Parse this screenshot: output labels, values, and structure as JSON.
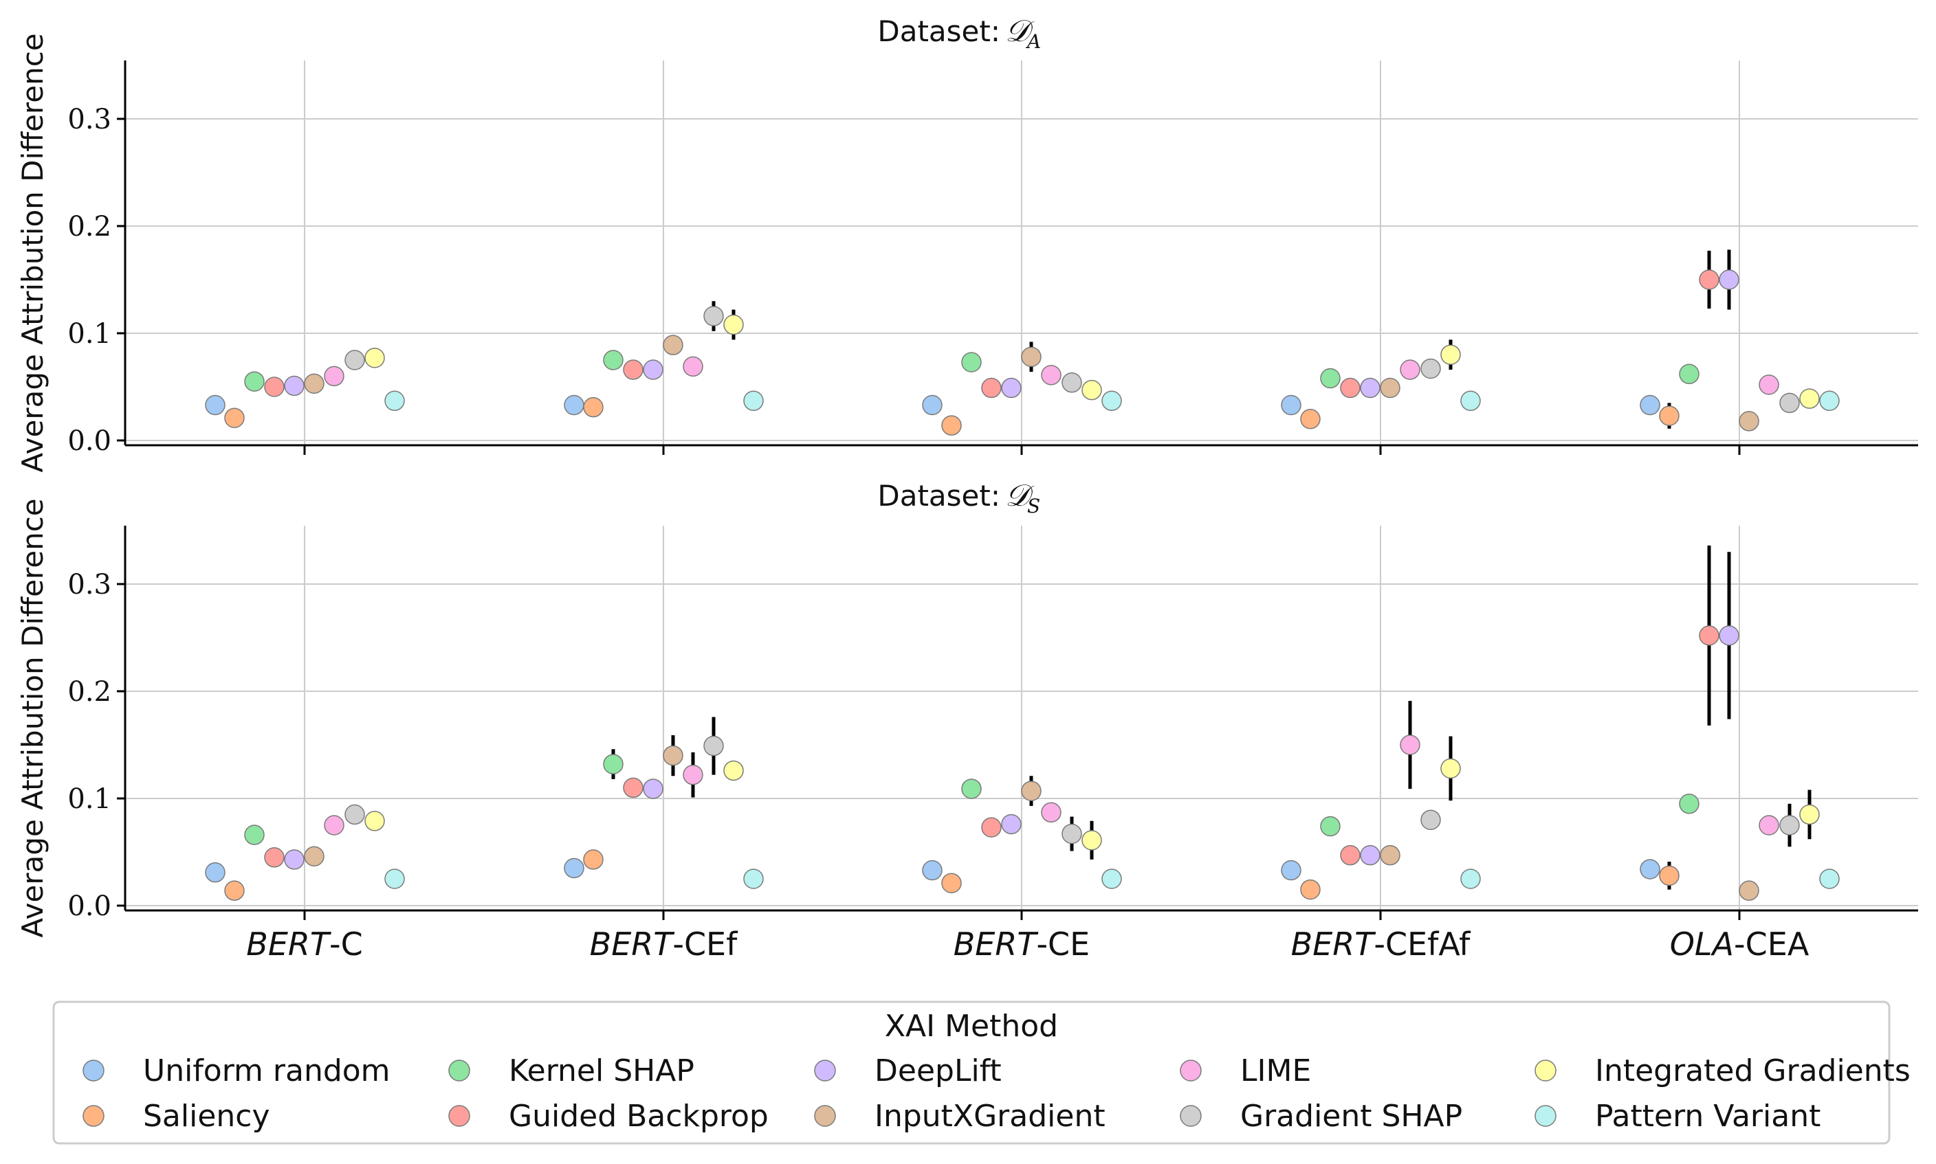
{
  "chart_data": {
    "type": "scatter",
    "ylabel": "Average Attribution Difference",
    "categories": [
      {
        "model": "BERT",
        "suffix": "-C"
      },
      {
        "model": "BERT",
        "suffix": "-CEf"
      },
      {
        "model": "BERT",
        "suffix": "-CE"
      },
      {
        "model": "BERT",
        "suffix": "-CEfAf"
      },
      {
        "model": "OLA",
        "suffix": "-CEA"
      }
    ],
    "ylim": [
      -0.005,
      0.355
    ],
    "yticks": [
      "0.0",
      "0.1",
      "0.2",
      "0.3"
    ],
    "grid": true,
    "legend": {
      "title": "XAI Method",
      "placement": "bottom",
      "entries": [
        {
          "name": "Uniform random",
          "color": "#a1c9f4"
        },
        {
          "name": "Saliency",
          "color": "#ffb482"
        },
        {
          "name": "Kernel SHAP",
          "color": "#8de5a1"
        },
        {
          "name": "Guided Backprop",
          "color": "#ff9f9b"
        },
        {
          "name": "DeepLift",
          "color": "#d0bbff"
        },
        {
          "name": "InputXGradient",
          "color": "#debb9b"
        },
        {
          "name": "LIME",
          "color": "#fab0e4"
        },
        {
          "name": "Gradient SHAP",
          "color": "#cfcfcf"
        },
        {
          "name": "Integrated Gradients",
          "color": "#fffea3"
        },
        {
          "name": "Pattern Variant",
          "color": "#b9f2f0"
        }
      ]
    },
    "panels": [
      {
        "title_prefix": "Dataset: ",
        "dataset_symbol": "𝒟",
        "dataset_sub": "A",
        "series": [
          {
            "name": "Uniform random",
            "values": [
              0.033,
              0.033,
              0.033,
              0.033,
              0.033
            ],
            "err": [
              0,
              0,
              0,
              0,
              0
            ]
          },
          {
            "name": "Saliency",
            "values": [
              0.021,
              0.031,
              0.014,
              0.02,
              0.023
            ],
            "err": [
              0,
              0,
              0,
              0,
              0.012
            ]
          },
          {
            "name": "Kernel SHAP",
            "values": [
              0.055,
              0.075,
              0.073,
              0.058,
              0.062
            ],
            "err": [
              0,
              0,
              0,
              0,
              0
            ]
          },
          {
            "name": "Guided Backprop",
            "values": [
              0.05,
              0.066,
              0.049,
              0.049,
              0.15
            ],
            "err": [
              0,
              0,
              0,
              0,
              0.027
            ]
          },
          {
            "name": "DeepLift",
            "values": [
              0.051,
              0.066,
              0.049,
              0.049,
              0.15
            ],
            "err": [
              0,
              0,
              0,
              0,
              0.028
            ]
          },
          {
            "name": "InputXGradient",
            "values": [
              0.053,
              0.089,
              0.078,
              0.049,
              0.018
            ],
            "err": [
              0,
              0,
              0.014,
              0,
              0
            ]
          },
          {
            "name": "LIME",
            "values": [
              0.06,
              0.069,
              0.061,
              0.066,
              0.052
            ],
            "err": [
              0,
              0,
              0,
              0,
              0
            ]
          },
          {
            "name": "Gradient SHAP",
            "values": [
              0.075,
              0.116,
              0.054,
              0.067,
              0.035
            ],
            "err": [
              0,
              0.014,
              0,
              0,
              0
            ]
          },
          {
            "name": "Integrated Gradients",
            "values": [
              0.077,
              0.108,
              0.047,
              0.08,
              0.039
            ],
            "err": [
              0,
              0.014,
              0,
              0.014,
              0
            ]
          },
          {
            "name": "Pattern Variant",
            "values": [
              0.037,
              0.037,
              0.037,
              0.037,
              0.037
            ],
            "err": [
              0,
              0,
              0,
              0,
              0
            ]
          }
        ]
      },
      {
        "title_prefix": "Dataset: ",
        "dataset_symbol": "𝒟",
        "dataset_sub": "S",
        "series": [
          {
            "name": "Uniform random",
            "values": [
              0.031,
              0.035,
              0.033,
              0.033,
              0.034
            ],
            "err": [
              0,
              0,
              0,
              0,
              0
            ]
          },
          {
            "name": "Saliency",
            "values": [
              0.014,
              0.043,
              0.021,
              0.015,
              0.028
            ],
            "err": [
              0,
              0,
              0,
              0,
              0.013
            ]
          },
          {
            "name": "Kernel SHAP",
            "values": [
              0.066,
              0.132,
              0.109,
              0.074,
              0.095
            ],
            "err": [
              0,
              0.014,
              0,
              0,
              0.009
            ]
          },
          {
            "name": "Guided Backprop",
            "values": [
              0.045,
              0.11,
              0.073,
              0.047,
              0.252
            ],
            "err": [
              0,
              0,
              0,
              0,
              0.084
            ]
          },
          {
            "name": "DeepLift",
            "values": [
              0.043,
              0.109,
              0.076,
              0.047,
              0.252
            ],
            "err": [
              0,
              0,
              0,
              0,
              0.078
            ]
          },
          {
            "name": "InputXGradient",
            "values": [
              0.046,
              0.14,
              0.107,
              0.047,
              0.014
            ],
            "err": [
              0,
              0.019,
              0.014,
              0,
              0
            ]
          },
          {
            "name": "LIME",
            "values": [
              0.075,
              0.122,
              0.087,
              0.15,
              0.075
            ],
            "err": [
              0,
              0.021,
              0,
              0.041,
              0
            ]
          },
          {
            "name": "Gradient SHAP",
            "values": [
              0.085,
              0.149,
              0.067,
              0.08,
              0.075
            ],
            "err": [
              0,
              0.027,
              0.016,
              0,
              0.02
            ]
          },
          {
            "name": "Integrated Gradients",
            "values": [
              0.079,
              0.126,
              0.061,
              0.128,
              0.085
            ],
            "err": [
              0,
              0,
              0.018,
              0.03,
              0.023
            ]
          },
          {
            "name": "Pattern Variant",
            "values": [
              0.025,
              0.025,
              0.025,
              0.025,
              0.025
            ],
            "err": [
              0,
              0,
              0,
              0,
              0
            ]
          }
        ]
      }
    ]
  }
}
